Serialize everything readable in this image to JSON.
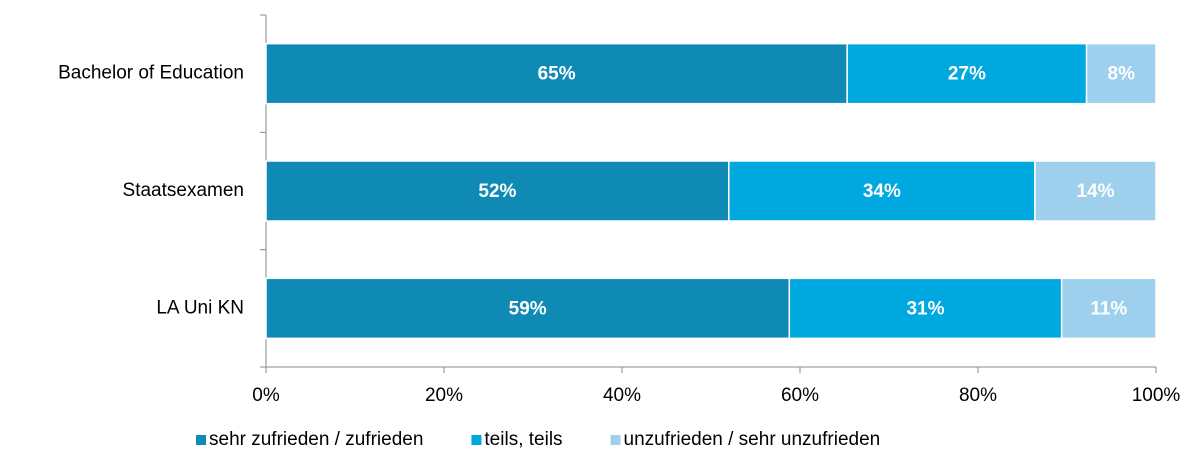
{
  "chart_data": {
    "type": "stacked_barh",
    "categories": [
      "Bachelor of Education",
      "Staatsexamen",
      "LA Uni KN"
    ],
    "series": [
      {
        "name": "sehr zufrieden / zufrieden",
        "color": "#0e8ab5",
        "values": [
          65.3,
          52.0,
          58.8
        ],
        "value_labels": [
          "65%",
          "52%",
          "59%"
        ]
      },
      {
        "name": "teils, teils",
        "color": "#00a8e0",
        "values": [
          26.9,
          34.4,
          30.6
        ],
        "value_labels": [
          "27%",
          "34%",
          "31%"
        ]
      },
      {
        "name": "unzufrieden / sehr unzufrieden",
        "color": "#9ecfec",
        "values": [
          7.8,
          13.6,
          10.6
        ],
        "value_labels": [
          "8%",
          "14%",
          "11%"
        ]
      }
    ],
    "xlim": [
      0,
      100
    ],
    "xticks": [
      {
        "value": 0,
        "label": "0%"
      },
      {
        "value": 20,
        "label": "20%"
      },
      {
        "value": 40,
        "label": "40%"
      },
      {
        "value": 60,
        "label": "60%"
      },
      {
        "value": 80,
        "label": "80%"
      },
      {
        "value": 100,
        "label": "100%"
      }
    ],
    "legend": "bottom"
  }
}
